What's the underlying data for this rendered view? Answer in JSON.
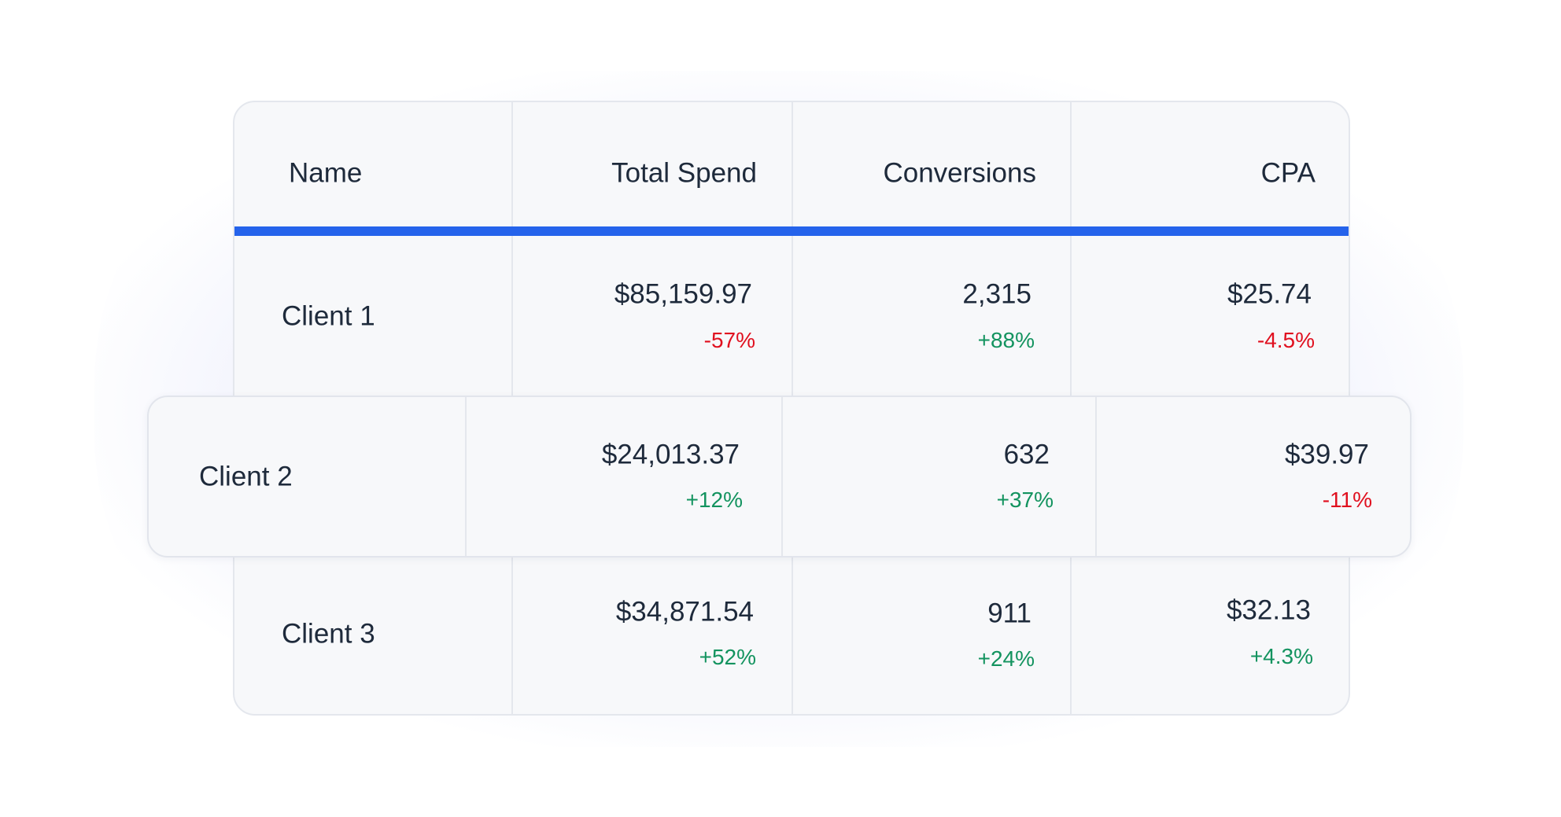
{
  "colors": {
    "accent": "#2563eb",
    "negative": "#e0101f",
    "positive": "#13935f"
  },
  "headers": [
    "Name",
    "Total Spend",
    "Conversions",
    "CPA"
  ],
  "rows": [
    {
      "name": "Client 1",
      "spend": "$85,159.97",
      "spend_change": "-57%",
      "conversions": "2,315",
      "conversions_change": "+88%",
      "cpa": "$25.74",
      "cpa_change": "-4.5%"
    },
    {
      "name": "Client 2",
      "spend": "$24,013.37",
      "spend_change": "+12%",
      "conversions": "632",
      "conversions_change": "+37%",
      "cpa": "$39.97",
      "cpa_change": "-11%"
    },
    {
      "name": "Client 3",
      "spend": "$34,871.54",
      "spend_change": "+52%",
      "conversions": "911",
      "conversions_change": "+24%",
      "cpa": "$32.13",
      "cpa_change": "+4.3%"
    }
  ]
}
